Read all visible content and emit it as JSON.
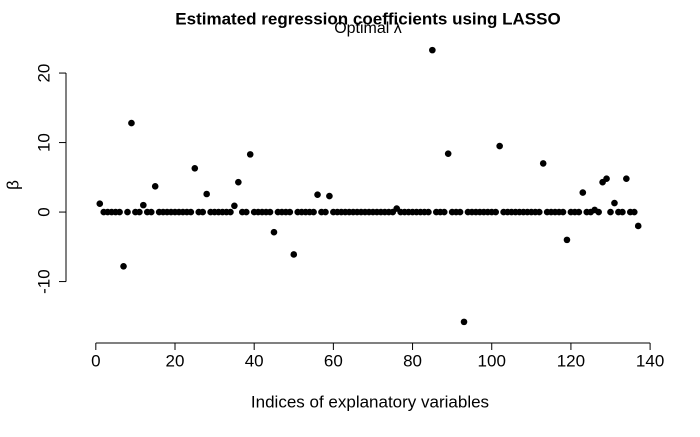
{
  "chart_data": {
    "type": "scatter",
    "title": "Estimated regression coefficients using LASSO",
    "subtitle": "Optimal λ",
    "x_label": "Indices of explanatory variables",
    "y_label": "β",
    "color": "#000000",
    "x": [
      1,
      2,
      3,
      4,
      5,
      6,
      7,
      8,
      9,
      10,
      11,
      12,
      13,
      14,
      15,
      16,
      17,
      18,
      19,
      20,
      21,
      22,
      23,
      24,
      25,
      26,
      27,
      28,
      29,
      30,
      31,
      32,
      33,
      34,
      35,
      36,
      37,
      38,
      39,
      40,
      41,
      42,
      43,
      44,
      45,
      46,
      47,
      48,
      49,
      50,
      51,
      52,
      53,
      54,
      55,
      56,
      57,
      58,
      59,
      60,
      61,
      62,
      63,
      64,
      65,
      66,
      67,
      68,
      69,
      70,
      71,
      72,
      73,
      74,
      75,
      76,
      77,
      78,
      79,
      80,
      81,
      82,
      83,
      84,
      85,
      86,
      87,
      88,
      89,
      90,
      91,
      92,
      93,
      94,
      95,
      96,
      97,
      98,
      99,
      100,
      101,
      102,
      103,
      104,
      105,
      106,
      107,
      108,
      109,
      110,
      111,
      112,
      113,
      114,
      115,
      116,
      117,
      118,
      119,
      120,
      121,
      122,
      123,
      124,
      125,
      126,
      127,
      128,
      129,
      130,
      131,
      132,
      133,
      134,
      135,
      136,
      137
    ],
    "values": [
      1.2,
      0,
      0,
      0,
      0,
      0,
      -7.8,
      0,
      12.8,
      0,
      0,
      1.0,
      0,
      0,
      3.7,
      0,
      0,
      0,
      0,
      0,
      0,
      0,
      0,
      0,
      6.3,
      0,
      0,
      2.6,
      0,
      0,
      0,
      0,
      0,
      0,
      0.9,
      4.3,
      0,
      0,
      8.3,
      0,
      0,
      0,
      0,
      0,
      -2.9,
      0,
      0,
      0,
      0,
      -6.1,
      0,
      0,
      0,
      0,
      0,
      2.5,
      0,
      0,
      2.3,
      0,
      0,
      0,
      0,
      0,
      0,
      0,
      0,
      0,
      0,
      0,
      0,
      0,
      0,
      0,
      0,
      0.5,
      0,
      0,
      0,
      0,
      0,
      0,
      0,
      0,
      23.3,
      0,
      0,
      0,
      8.4,
      0,
      0,
      0,
      -15.8,
      0,
      0,
      0,
      0,
      0,
      0,
      0,
      0,
      9.5,
      0,
      0,
      0,
      0,
      0,
      0,
      0,
      0,
      0,
      0,
      7.0,
      0,
      0,
      0,
      0,
      0,
      -4.0,
      0,
      0,
      0,
      2.8,
      0,
      0,
      0.3,
      0,
      4.3,
      4.8,
      0,
      1.3,
      0,
      0,
      4.8,
      0,
      0,
      -2.0
    ],
    "xlim": [
      -4.5,
      142.5
    ],
    "ylim": [
      -17.4,
      24.9
    ],
    "xticks": [
      0,
      20,
      40,
      60,
      80,
      100,
      120,
      140
    ],
    "yticks": [
      -10,
      0,
      10,
      20
    ]
  }
}
